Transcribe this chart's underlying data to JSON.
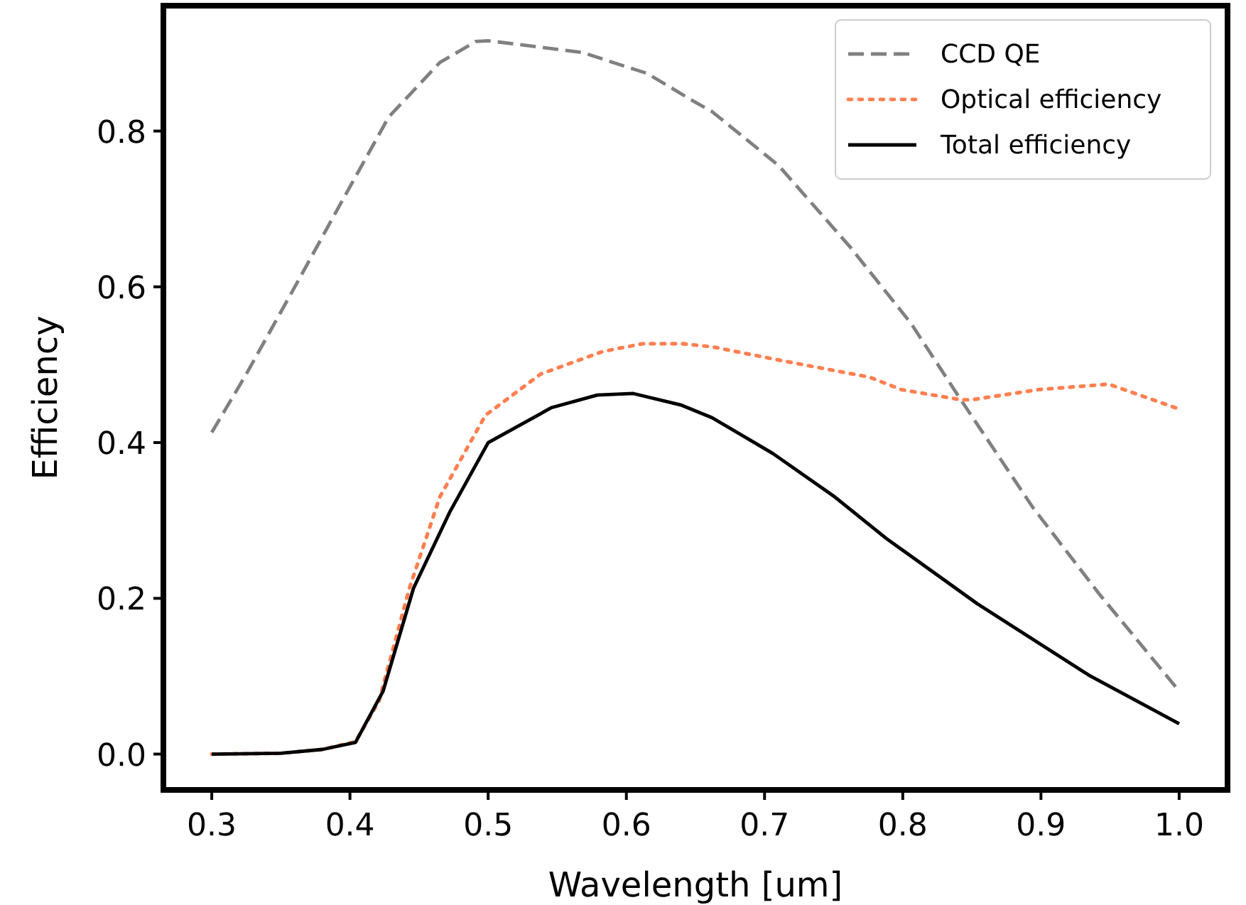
{
  "chart_data": {
    "type": "line",
    "xlabel": "Wavelength [um]",
    "ylabel": "Efficiency",
    "xlim": [
      0.265,
      1.035
    ],
    "ylim": [
      -0.046,
      0.961
    ],
    "xticks": [
      {
        "value": 0.3,
        "label": "0.3"
      },
      {
        "value": 0.4,
        "label": "0.4"
      },
      {
        "value": 0.5,
        "label": "0.5"
      },
      {
        "value": 0.6,
        "label": "0.6"
      },
      {
        "value": 0.7,
        "label": "0.7"
      },
      {
        "value": 0.8,
        "label": "0.8"
      },
      {
        "value": 0.9,
        "label": "0.9"
      },
      {
        "value": 1.0,
        "label": "1.0"
      }
    ],
    "yticks": [
      {
        "value": 0,
        "label": "0.0"
      },
      {
        "value": 0.2,
        "label": "0.2"
      },
      {
        "value": 0.4,
        "label": "0.4"
      },
      {
        "value": 0.6,
        "label": "0.6"
      },
      {
        "value": 0.8,
        "label": "0.8"
      }
    ],
    "grid": false,
    "legend": "top right",
    "marker": "none",
    "series": [
      {
        "name": "CCD QE",
        "color": "#808080",
        "line_style": "dashed",
        "x": [
          0.3,
          0.325,
          0.362,
          0.388,
          0.428,
          0.465,
          0.491,
          0.5,
          0.568,
          0.615,
          0.649,
          0.662,
          0.71,
          0.762,
          0.806,
          0.842,
          0.894,
          0.942,
          1.0
        ],
        "values": [
          0.413,
          0.488,
          0.606,
          0.69,
          0.818,
          0.888,
          0.915,
          0.916,
          0.901,
          0.874,
          0.838,
          0.825,
          0.756,
          0.651,
          0.553,
          0.455,
          0.317,
          0.206,
          0.081
        ]
      },
      {
        "name": "Optical efficiency",
        "color": "#ff7f50",
        "line_style": "dotted",
        "x": [
          0.3,
          0.35,
          0.38,
          0.404,
          0.421,
          0.443,
          0.465,
          0.498,
          0.538,
          0.583,
          0.612,
          0.64,
          0.662,
          0.713,
          0.776,
          0.799,
          0.842,
          0.85,
          0.898,
          0.949,
          1.0
        ],
        "values": [
          0,
          0.001,
          0.006,
          0.016,
          0.068,
          0.213,
          0.33,
          0.435,
          0.488,
          0.517,
          0.527,
          0.527,
          0.523,
          0.505,
          0.484,
          0.468,
          0.455,
          0.455,
          0.468,
          0.475,
          0.443
        ]
      },
      {
        "name": "Total efficiency",
        "color": "#000000",
        "line_style": "solid",
        "x": [
          0.3,
          0.35,
          0.38,
          0.404,
          0.424,
          0.446,
          0.472,
          0.5,
          0.546,
          0.579,
          0.605,
          0.64,
          0.662,
          0.706,
          0.751,
          0.788,
          0.854,
          0.935,
          1.0
        ],
        "values": [
          0,
          0.001,
          0.006,
          0.015,
          0.081,
          0.213,
          0.31,
          0.4,
          0.445,
          0.461,
          0.463,
          0.448,
          0.432,
          0.386,
          0.33,
          0.277,
          0.193,
          0.101,
          0.039
        ]
      }
    ]
  }
}
